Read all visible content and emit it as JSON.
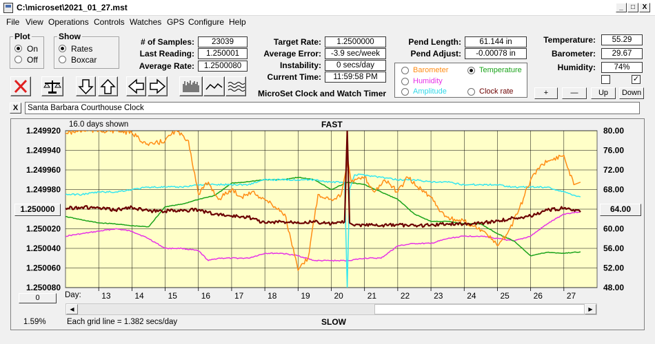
{
  "titlebar": {
    "title": "C:\\microset\\2021_01_27.mst",
    "minimize": "_",
    "maximize": "□",
    "close": "X"
  },
  "menu": [
    "File",
    "View",
    "Operations",
    "Controls",
    "Watches",
    "GPS",
    "Configure",
    "Help"
  ],
  "plot_group": {
    "title": "Plot",
    "on": "On",
    "off": "Off"
  },
  "show_group": {
    "title": "Show",
    "rates": "Rates",
    "boxcar": "Boxcar"
  },
  "stats": {
    "samples_label": "# of Samples:",
    "samples": "23039",
    "last_label": "Last Reading:",
    "last": "1.250001",
    "avg_label": "Average Rate:",
    "avg": "1.2500080"
  },
  "rates": {
    "target_label": "Target Rate:",
    "target": "1.2500000",
    "error_label": "Average Error:",
    "error": "-3.9 sec/week",
    "instab_label": "Instability:",
    "instab": "0 secs/day",
    "time_label": "Current Time:",
    "time": "11:59:58 PM"
  },
  "app_caption": "MicroSet Clock and Watch Timer",
  "pendulum": {
    "length_label": "Pend Length:",
    "length": "61.144 in",
    "adjust_label": "Pend Adjust:",
    "adjust": "-0.00078 in"
  },
  "overlay_options": {
    "barometer": "Barometer",
    "temperature": "Temperature",
    "humidity": "Humidity",
    "amplitude": "Amplitude",
    "clock_rate": "Clock rate",
    "selected": "temperature"
  },
  "environment": {
    "temp_label": "Temperature:",
    "temp": "55.29",
    "baro_label": "Barometer:",
    "baro": "29.67",
    "hum_label": "Humidity:",
    "hum": "74%"
  },
  "scale_buttons": {
    "plus": "+",
    "minus": "—",
    "up": "Up",
    "down": "Down"
  },
  "clock_name": "Santa Barbara Courthouse Clock",
  "clock_close": "X",
  "chart_left_value_button": "1.250000",
  "chart_right_value_button": "64.00",
  "chart_bottom_button": "0",
  "footer_percent": "1.59%",
  "colors": {
    "plot_bg": "#ffffc8",
    "rate": "#6b0000",
    "temperature": "#1aa31a",
    "barometer": "#ff8c14",
    "humidity": "#e632e6",
    "amplitude": "#32e6f0"
  },
  "chart_data": {
    "type": "line",
    "top_label": "FAST",
    "bottom_label": "SLOW",
    "days_shown": "16.0 days shown",
    "day_label": "Day:",
    "grid_note": "Each grid line = 1.382 secs/day",
    "x_ticks": [
      13,
      14,
      15,
      16,
      17,
      18,
      19,
      20,
      21,
      22,
      23,
      24,
      25,
      26,
      27
    ],
    "xlim": [
      12,
      28
    ],
    "y_left_ticks": [
      "1.249920",
      "1.249940",
      "1.249960",
      "1.249980",
      "1.250000",
      "1.250020",
      "1.250040",
      "1.250060",
      "1.250080"
    ],
    "y_left_lim": [
      1.25008,
      1.24992
    ],
    "y_right_ticks": [
      "80.00",
      "76.00",
      "72.00",
      "68.00",
      "64.00",
      "60.00",
      "56.00",
      "52.00",
      "48.00"
    ],
    "y_right_lim": [
      48,
      80
    ],
    "series": [
      {
        "name": "Clock rate",
        "axis": "left",
        "color": "#6b0000",
        "x": [
          12,
          12.5,
          13,
          13.5,
          14,
          14.5,
          15,
          15.5,
          16,
          16.5,
          17,
          17.5,
          18,
          18.5,
          19,
          19.5,
          20,
          20.4,
          20.48,
          20.55,
          20.7,
          21,
          21.5,
          22,
          22.5,
          23,
          23.5,
          24,
          24.5,
          25,
          25.5,
          26,
          26.5,
          27,
          27.5
        ],
        "y": [
          1.249999,
          1.249998,
          1.249999,
          1.250001,
          1.249998,
          1.250002,
          1.250002,
          1.250001,
          1.250001,
          1.250005,
          1.250007,
          1.250008,
          1.250014,
          1.250013,
          1.250013,
          1.250013,
          1.250015,
          1.250013,
          1.24992,
          1.250014,
          1.250017,
          1.250016,
          1.250017,
          1.250016,
          1.250017,
          1.250016,
          1.250015,
          1.250015,
          1.250014,
          1.250012,
          1.250009,
          1.250007,
          1.250001,
          1.249999,
          1.250003
        ]
      },
      {
        "name": "Temperature",
        "axis": "right",
        "color": "#1aa31a",
        "x": [
          12,
          12.5,
          13,
          13.5,
          14,
          14.5,
          15,
          15.5,
          16,
          16.5,
          17,
          17.5,
          18,
          18.5,
          19,
          19.5,
          20,
          20.5,
          21,
          21.5,
          22,
          22.5,
          23,
          23.5,
          24,
          24.5,
          25,
          25.5,
          26,
          26.5,
          27,
          27.5
        ],
        "y": [
          62.5,
          61.8,
          61.2,
          61.0,
          60.6,
          60.4,
          64.5,
          65.0,
          66.0,
          66.8,
          69.3,
          69.6,
          70.0,
          70.0,
          70.5,
          70.0,
          68.0,
          69.5,
          69.0,
          67.5,
          66.0,
          63.0,
          61.5,
          61.5,
          61.0,
          61.0,
          59.0,
          57.5,
          54.5,
          55.2,
          55.0,
          55.3
        ]
      },
      {
        "name": "Barometer",
        "axis": "right",
        "color": "#ff8c14",
        "x": [
          12,
          12.5,
          13,
          13.5,
          14,
          14.5,
          15,
          15.3,
          15.7,
          16,
          16.3,
          16.6,
          17,
          17.3,
          17.6,
          18,
          18.3,
          18.6,
          19,
          19.3,
          19.6,
          20,
          20.3,
          20.5,
          20.6,
          21,
          21.3,
          21.6,
          22,
          22.3,
          22.6,
          23,
          23.3,
          23.6,
          24,
          24.3,
          24.6,
          25,
          25.3,
          25.6,
          26,
          26.3,
          26.6,
          27,
          27.3,
          27.5
        ],
        "y": [
          79.5,
          80,
          80,
          80,
          79.5,
          77.0,
          78.0,
          80.0,
          78.0,
          67.0,
          69.5,
          66.0,
          68.0,
          66.5,
          67.5,
          66.0,
          64.5,
          63.0,
          51.5,
          54.0,
          67.0,
          66.0,
          67.0,
          74.0,
          69.5,
          70.5,
          67.5,
          70.0,
          67.5,
          70.5,
          68.5,
          66.5,
          63.5,
          62.0,
          61.5,
          60.5,
          59.5,
          56.5,
          59.0,
          63.0,
          70.0,
          73.0,
          74.0,
          75.0,
          69.0,
          69.5
        ]
      },
      {
        "name": "Humidity",
        "axis": "right",
        "color": "#e632e6",
        "x": [
          12,
          12.5,
          13,
          13.5,
          14,
          14.5,
          15,
          15.5,
          16,
          16.3,
          16.6,
          17,
          17.5,
          18,
          18.5,
          19,
          19.5,
          20,
          20.5,
          21,
          21.5,
          22,
          22.5,
          23,
          23.5,
          24,
          24.5,
          25,
          25.5,
          26,
          26.5,
          27,
          27.5
        ],
        "y": [
          58.5,
          59.0,
          59.5,
          60.0,
          59.5,
          58.0,
          56.0,
          56.0,
          55.5,
          53.5,
          54.0,
          54.0,
          54.0,
          55.0,
          55.0,
          54.5,
          53.5,
          53.5,
          53.5,
          54.0,
          54.0,
          56.5,
          57.0,
          57.0,
          58.0,
          58.5,
          58.5,
          58.0,
          57.5,
          58.5,
          61.0,
          63.0,
          63.5
        ]
      },
      {
        "name": "Amplitude",
        "axis": "right",
        "color": "#32e6f0",
        "x": [
          12,
          12.5,
          13,
          13.5,
          14,
          14.5,
          15,
          15.5,
          16,
          16.5,
          17,
          17.5,
          18,
          18.5,
          19,
          19.5,
          20,
          20.4,
          20.48,
          20.55,
          20.7,
          21,
          21.5,
          22,
          22.5,
          23,
          23.5,
          24,
          24.5,
          25,
          25.5,
          26,
          26.5,
          27,
          27.5
        ],
        "y": [
          67.0,
          67.0,
          67.5,
          67.5,
          68.0,
          68.5,
          68.5,
          68.5,
          69.0,
          69.0,
          69.0,
          69.0,
          70.0,
          70.0,
          70.0,
          70.0,
          69.5,
          69.5,
          48.0,
          68.0,
          71.0,
          71.0,
          70.5,
          70.0,
          70.0,
          69.5,
          69.5,
          69.0,
          69.0,
          69.0,
          68.5,
          68.5,
          68.5,
          67.5,
          66.5
        ]
      }
    ]
  }
}
